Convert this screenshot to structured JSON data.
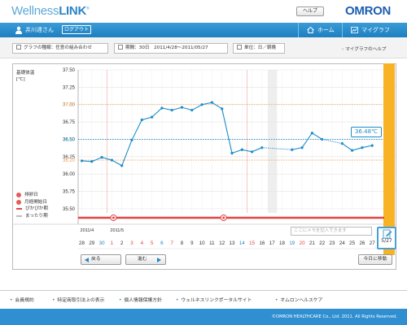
{
  "header": {
    "logo_text": "Wellness",
    "logo_bold": "LINK",
    "help": "ヘルプ",
    "brand": "OMRON"
  },
  "nav": {
    "user": "井川達さん",
    "logout": "ログアウト",
    "home": "ホーム",
    "mygraph": "マイグラフ",
    "user_icon": "user-icon",
    "home_icon": "home-icon",
    "graph_icon": "graph-icon"
  },
  "filters": {
    "graph_type": "グラフの種類：任意の組み合わせ",
    "period": "期間：30日　2011/4/28～2011/05/27",
    "unit": "単位：日／朝晩",
    "help_link": "マイグラフのヘルプ"
  },
  "chart_data": {
    "type": "line",
    "ylabel": "基礎体温",
    "unit": "[℃]",
    "ylim": [
      35.44,
      37.5
    ],
    "y_ticks": [
      "37.50",
      "37.25",
      "37.00",
      "36.75",
      "36.50",
      "36.25",
      "36.00",
      "35.75",
      "35.50"
    ],
    "ref_lines": [
      {
        "value": "37.00",
        "color": "#f0a050"
      },
      {
        "value": "36.50",
        "color": "#1c8cc9"
      },
      {
        "value": "36.20",
        "color": "#f0a050"
      }
    ],
    "x": [
      "28",
      "29",
      "30",
      "1",
      "2",
      "3",
      "4",
      "5",
      "6",
      "7",
      "8",
      "9",
      "10",
      "11",
      "12",
      "13",
      "14",
      "15",
      "16",
      "17",
      "18",
      "19",
      "20",
      "21",
      "22",
      "23",
      "24",
      "25",
      "26",
      "27"
    ],
    "x_colors": [
      "#333",
      "#333",
      "#2b84c5",
      "#e34545",
      "#333",
      "#e34545",
      "#e34545",
      "#e34545",
      "#2b84c5",
      "#e34545",
      "#333",
      "#333",
      "#333",
      "#333",
      "#333",
      "#333",
      "#2b84c5",
      "#e34545",
      "#333",
      "#333",
      "#333",
      "#2b84c5",
      "#e34545",
      "#333",
      "#333",
      "#333",
      "#333",
      "#333",
      "#333",
      "#333"
    ],
    "month_labels": [
      {
        "index": 0,
        "text": "2011/4"
      },
      {
        "index": 3,
        "text": "2011/5"
      }
    ],
    "series": [
      {
        "values": [
          36.19,
          36.18,
          36.24,
          36.2,
          36.12,
          36.49,
          36.78,
          36.82,
          36.95,
          36.92,
          36.96,
          36.92,
          37.0,
          37.03,
          36.94,
          36.3,
          36.35,
          36.32,
          36.38,
          null,
          null,
          36.35,
          36.38,
          36.59,
          36.5,
          null,
          36.44,
          36.34,
          36.38,
          36.41
        ],
        "dotted_gaps": [
          [
            18,
            21
          ],
          [
            24,
            26
          ]
        ],
        "color": "#1c8cc9"
      }
    ],
    "current_value_label": "36.48℃",
    "highlight_bar_color": "#f8b324",
    "menstruation_markers": [
      3,
      14
    ],
    "grid": true
  },
  "legend": {
    "items": [
      "排卵日",
      "月経開始日",
      "ぴかぴか期",
      "まったり期"
    ]
  },
  "controls": {
    "prev": "戻る",
    "next": "進む",
    "today": "今日に移動",
    "memo_placeholder": "ここにメモを記入できます",
    "memo_date": "5/27"
  },
  "footer": {
    "links": [
      "会員規約",
      "特定商取引法上の表示",
      "個人情報保護方針",
      "ウェルネスリンクポータルサイト",
      "オムロンヘルスケア"
    ],
    "copyright": "©OMRON HEALTHCARE Co., Ltd. 2011. All Rights Reserved."
  }
}
